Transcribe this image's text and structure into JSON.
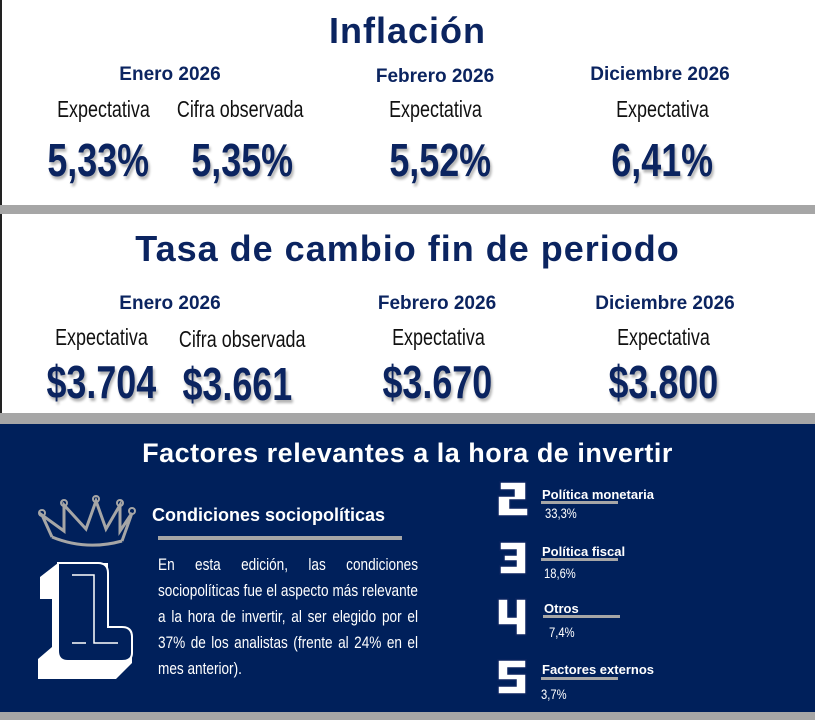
{
  "inflation": {
    "title": "Inflación",
    "columns": [
      {
        "period": "Enero 2026",
        "items": [
          {
            "label": "Expectativa",
            "value": "5,33%"
          },
          {
            "label": "Cifra observada",
            "value": "5,35%"
          }
        ]
      },
      {
        "period": "Febrero 2026",
        "items": [
          {
            "label": "Expectativa",
            "value": "5,52%"
          }
        ]
      },
      {
        "period": "Diciembre 2026",
        "items": [
          {
            "label": "Expectativa",
            "value": "6,41%"
          }
        ]
      }
    ]
  },
  "exchange": {
    "title": "Tasa de cambio fin de periodo",
    "columns": [
      {
        "period": "Enero 2026",
        "items": [
          {
            "label": "Expectativa",
            "value": "$3.704"
          },
          {
            "label": "Cifra observada",
            "value": "$3.661"
          }
        ]
      },
      {
        "period": "Febrero 2026",
        "items": [
          {
            "label": "Expectativa",
            "value": "$3.670"
          }
        ]
      },
      {
        "period": "Diciembre 2026",
        "items": [
          {
            "label": "Expectativa",
            "value": "$3.800"
          }
        ]
      }
    ]
  },
  "factors": {
    "title": "Factores relevantes a la hora de invertir",
    "top": {
      "rank": "1",
      "label": "Condiciones sociopolíticas",
      "text": "En esta edición, las condiciones sociopolíticas fue el aspecto más relevante a la hora de invertir, al ser elegido por el 37% de los analistas (frente al 24% en el mes anterior)."
    },
    "others": [
      {
        "rank": "2",
        "label": "Política monetaria",
        "value": "33,3%"
      },
      {
        "rank": "3",
        "label": "Política fiscal",
        "value": "18,6%"
      },
      {
        "rank": "4",
        "label": "Otros",
        "value": "7,4%"
      },
      {
        "rank": "5",
        "label": "Factores externos",
        "value": "3,7%"
      }
    ]
  },
  "colors": {
    "navy": "#00205b",
    "title": "#0b2460",
    "gray": "#a6a6a6"
  }
}
